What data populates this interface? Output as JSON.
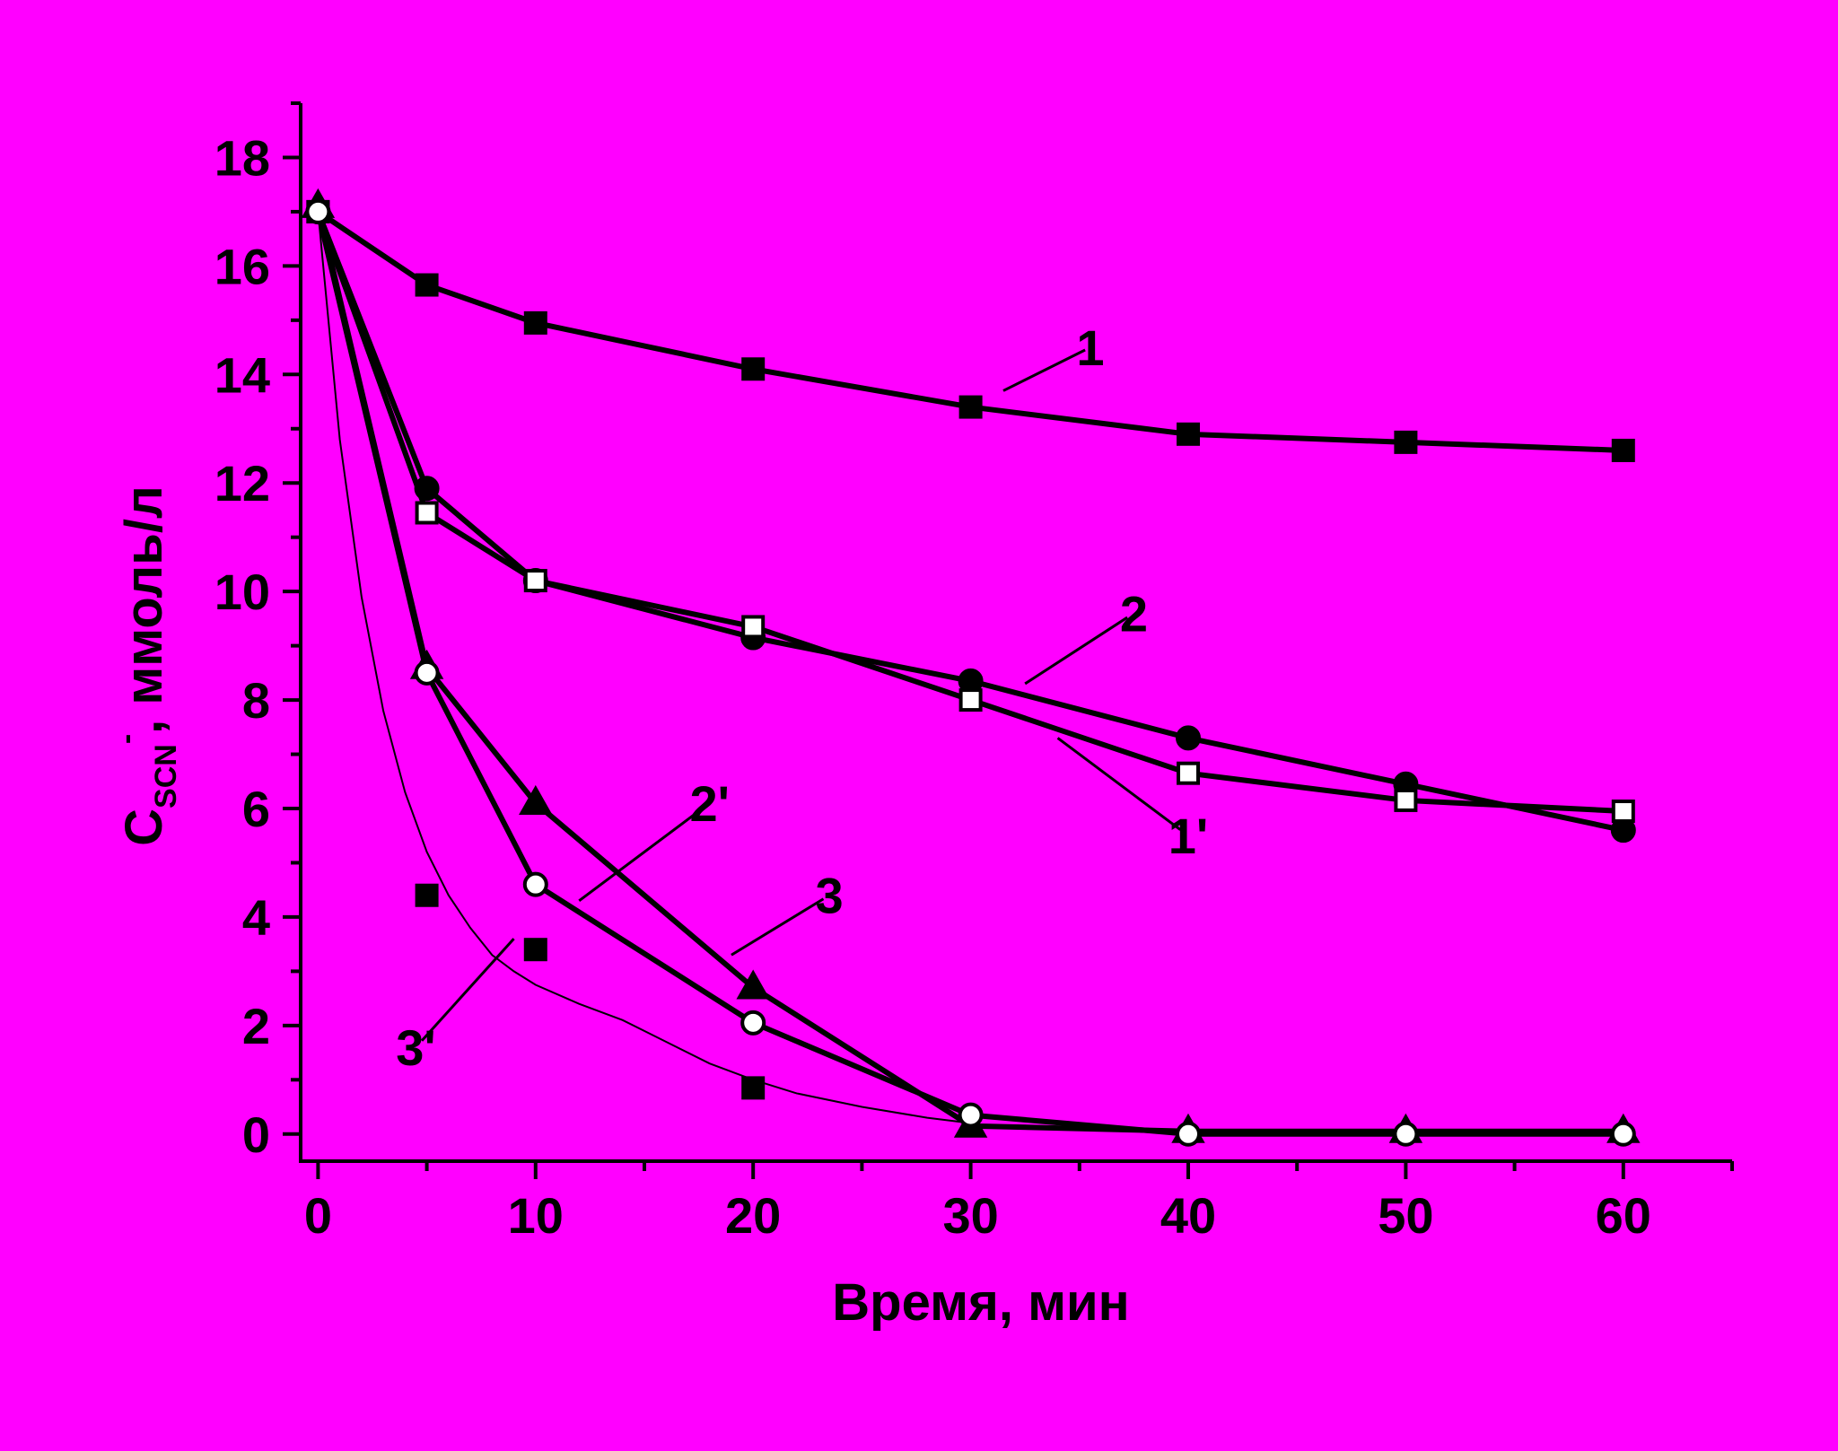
{
  "chart_data": {
    "type": "line",
    "background": "#ff00ff",
    "title": "",
    "xlabel": "Время, мин",
    "ylabel": {
      "main": "C",
      "sub": "SCN",
      "sup": "-",
      "rest": ", ммоль/л"
    },
    "xlim": [
      -0.8,
      65
    ],
    "ylim": [
      -0.5,
      19
    ],
    "xticks": [
      0,
      10,
      20,
      30,
      40,
      50,
      60
    ],
    "xticks_minor": [
      5,
      15,
      25,
      35,
      45,
      55,
      65
    ],
    "yticks": [
      0,
      2,
      4,
      6,
      8,
      10,
      12,
      14,
      16,
      18
    ],
    "yticks_minor": [
      1,
      3,
      5,
      7,
      9,
      11,
      13,
      15,
      17,
      19
    ],
    "grid": false,
    "legend": "none",
    "series": [
      {
        "label": "1",
        "marker": "square-filled",
        "line": true,
        "x": [
          0,
          5,
          10,
          20,
          30,
          40,
          50,
          60
        ],
        "y": [
          17.0,
          15.65,
          14.95,
          14.1,
          13.4,
          12.9,
          12.75,
          12.6
        ]
      },
      {
        "label": "2",
        "marker": "circle-filled",
        "line": true,
        "x": [
          0,
          5,
          10,
          20,
          30,
          40,
          50,
          60
        ],
        "y": [
          17.0,
          11.9,
          10.2,
          9.15,
          8.35,
          7.3,
          6.45,
          5.6
        ]
      },
      {
        "label": "1'",
        "marker": "square-open",
        "line": true,
        "x": [
          0,
          5,
          10,
          20,
          30,
          40,
          50,
          60
        ],
        "y": [
          17.0,
          11.45,
          10.2,
          9.35,
          8.0,
          6.65,
          6.15,
          5.95
        ]
      },
      {
        "label": "3",
        "marker": "triangle-filled",
        "line": true,
        "x": [
          0,
          5,
          10,
          20,
          30,
          40,
          50,
          60
        ],
        "y": [
          17.1,
          8.6,
          6.1,
          2.7,
          0.15,
          0.05,
          0.05,
          0.05
        ]
      },
      {
        "label": "2'",
        "marker": "circle-open",
        "line": true,
        "x": [
          0,
          5,
          10,
          20,
          30,
          40,
          50,
          60
        ],
        "y": [
          17.0,
          8.5,
          4.6,
          2.05,
          0.35,
          0.0,
          0.0,
          0.0
        ]
      },
      {
        "label": "3'",
        "marker": "square-filled",
        "line": false,
        "x": [
          5,
          10,
          20
        ],
        "y": [
          4.4,
          3.4,
          0.85
        ]
      }
    ],
    "fit_curve": {
      "x": [
        0,
        1,
        2,
        3,
        4,
        5,
        6,
        7,
        8,
        9,
        10,
        12,
        14,
        16,
        18,
        20,
        22,
        25,
        28,
        30
      ],
      "y": [
        17.0,
        12.8,
        9.9,
        7.8,
        6.3,
        5.2,
        4.4,
        3.8,
        3.3,
        3.0,
        2.75,
        2.4,
        2.1,
        1.7,
        1.3,
        1.0,
        0.75,
        0.5,
        0.3,
        0.2
      ]
    },
    "annotations": [
      {
        "text": "1",
        "point": [
          31.5,
          13.7
        ],
        "label_at": [
          35.5,
          14.5
        ]
      },
      {
        "text": "2",
        "point": [
          32.5,
          8.3
        ],
        "label_at": [
          37.5,
          9.6
        ]
      },
      {
        "text": "1'",
        "point": [
          34.0,
          7.3
        ],
        "label_at": [
          40.0,
          5.5
        ]
      },
      {
        "text": "3",
        "point": [
          19.0,
          3.3
        ],
        "label_at": [
          23.5,
          4.4
        ]
      },
      {
        "text": "2'",
        "point": [
          12.0,
          4.3
        ],
        "label_at": [
          18.0,
          6.1
        ]
      },
      {
        "text": "3'",
        "point": [
          9.0,
          3.6
        ],
        "label_at": [
          4.5,
          1.6
        ]
      }
    ]
  }
}
